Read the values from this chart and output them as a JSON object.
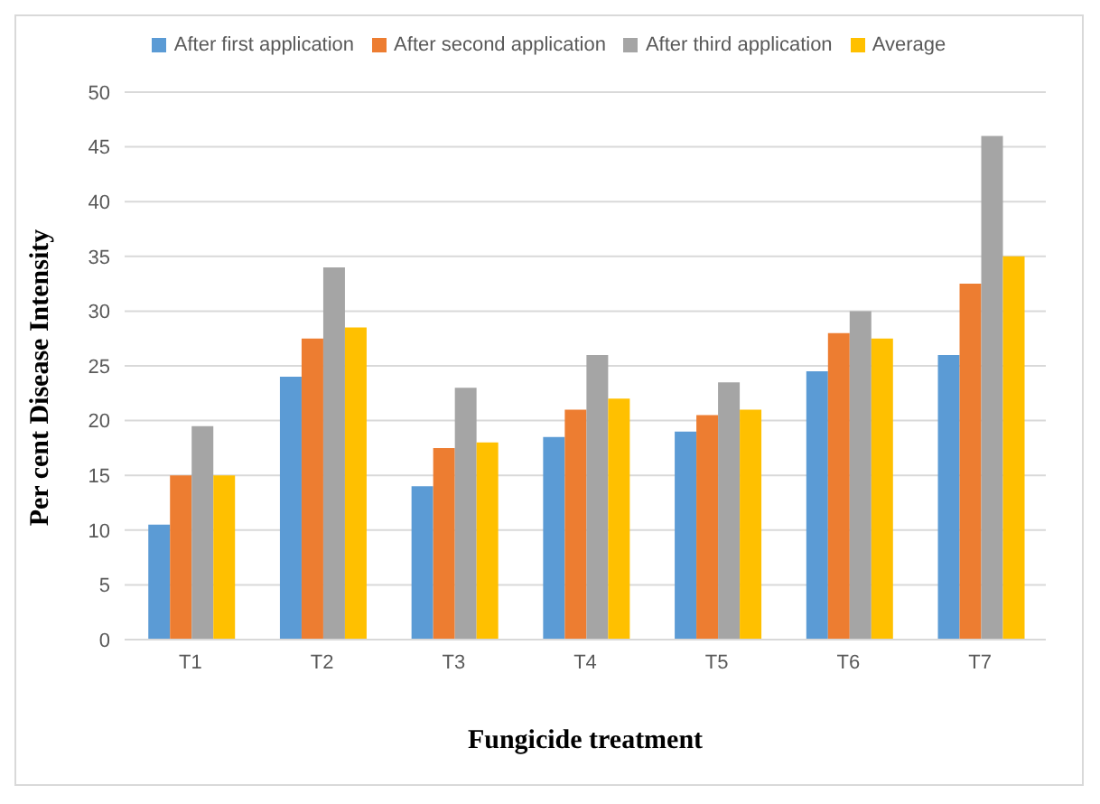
{
  "chart_data": {
    "type": "bar",
    "xlabel": "Fungicide treatment",
    "ylabel": "Per cent Disease Intensity",
    "categories": [
      "T1",
      "T2",
      "T3",
      "T4",
      "T5",
      "T6",
      "T7"
    ],
    "series": [
      {
        "name": "After first application",
        "color": "#5b9bd5",
        "values": [
          10.5,
          24,
          14,
          18.5,
          19,
          24.5,
          26
        ]
      },
      {
        "name": "After second application",
        "color": "#ed7d31",
        "values": [
          15,
          27.5,
          17.5,
          21,
          20.5,
          28,
          32.5
        ]
      },
      {
        "name": "After third application",
        "color": "#a5a5a5",
        "values": [
          19.5,
          34,
          23,
          26,
          23.5,
          30,
          46
        ]
      },
      {
        "name": "Average",
        "color": "#ffc000",
        "values": [
          15,
          28.5,
          18,
          22,
          21,
          27.5,
          35
        ]
      }
    ],
    "ylim": [
      0,
      50
    ],
    "yticks": [
      0,
      5,
      10,
      15,
      20,
      25,
      30,
      35,
      40,
      45,
      50
    ],
    "grid": "y",
    "legend": "top"
  }
}
